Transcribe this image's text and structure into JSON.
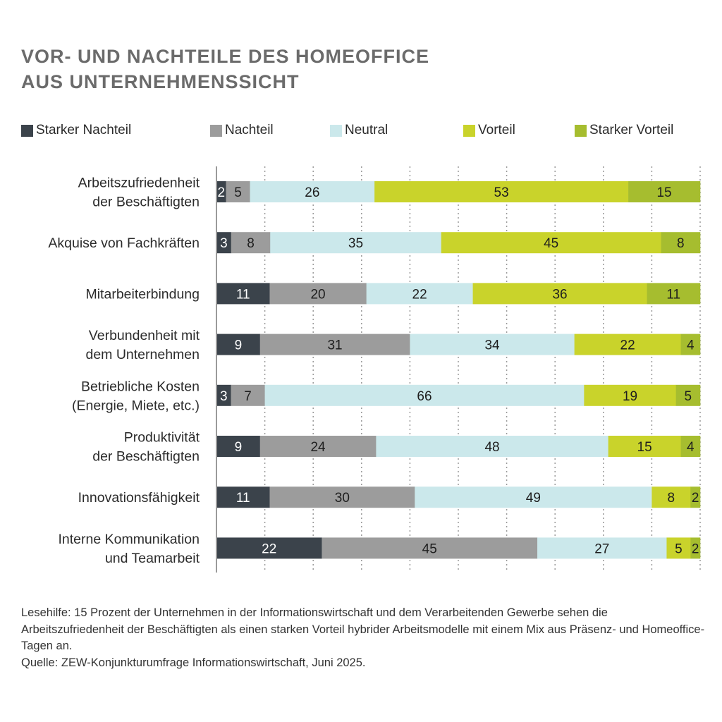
{
  "title_lines": [
    "VOR- UND NACHTEILE DES HOMEOFFICE",
    "AUS UNTERNEHMENSSICHT"
  ],
  "colors": {
    "Starker Nachteil": "#3b434b",
    "Nachteil": "#9c9c9c",
    "Neutral": "#cbe8eb",
    "Vorteil": "#c9d32b",
    "Starker Vorteil": "#a6bd2f"
  },
  "chart_data": {
    "type": "bar",
    "orientation": "horizontal",
    "stacked": true,
    "normalized_percent": true,
    "xlim": [
      0,
      100
    ],
    "grid": "vertical dotted every 10",
    "legend_position": "top",
    "categories": [
      [
        "Arbeitszufriedenheit",
        "der Beschäftigten"
      ],
      [
        "Akquise von Fachkräften"
      ],
      [
        "Mitarbeiterbindung"
      ],
      [
        "Verbundenheit mit",
        "dem Unternehmen"
      ],
      [
        "Betriebliche Kosten",
        "(Energie, Miete, etc.)"
      ],
      [
        "Produktivität",
        "der Beschäftigten"
      ],
      [
        "Innovationsfähigkeit"
      ],
      [
        "Interne Kommunikation",
        "und Teamarbeit"
      ]
    ],
    "series": [
      {
        "name": "Starker Nachteil",
        "values": [
          2,
          3,
          11,
          9,
          3,
          9,
          11,
          22
        ]
      },
      {
        "name": "Nachteil",
        "values": [
          5,
          8,
          20,
          31,
          7,
          24,
          30,
          45
        ]
      },
      {
        "name": "Neutral",
        "values": [
          26,
          35,
          22,
          34,
          66,
          48,
          49,
          27
        ]
      },
      {
        "name": "Vorteil",
        "values": [
          53,
          45,
          36,
          22,
          19,
          15,
          8,
          5
        ]
      },
      {
        "name": "Starker Vorteil",
        "values": [
          15,
          8,
          11,
          4,
          5,
          4,
          2,
          2
        ]
      }
    ]
  },
  "footnote": {
    "lesehilfe": "Lesehilfe: 15 Prozent der Unternehmen in der Informationswirtschaft und dem Verarbeitenden Gewerbe sehen die Arbeitszufriedenheit der Beschäftigten als einen starken Vorteil hybrider Arbeitsmodelle mit einem Mix aus Präsenz- und Homeoffice-Tagen an.",
    "quelle": "Quelle: ZEW-Konjunkturumfrage Informationswirtschaft, Juni 2025."
  }
}
